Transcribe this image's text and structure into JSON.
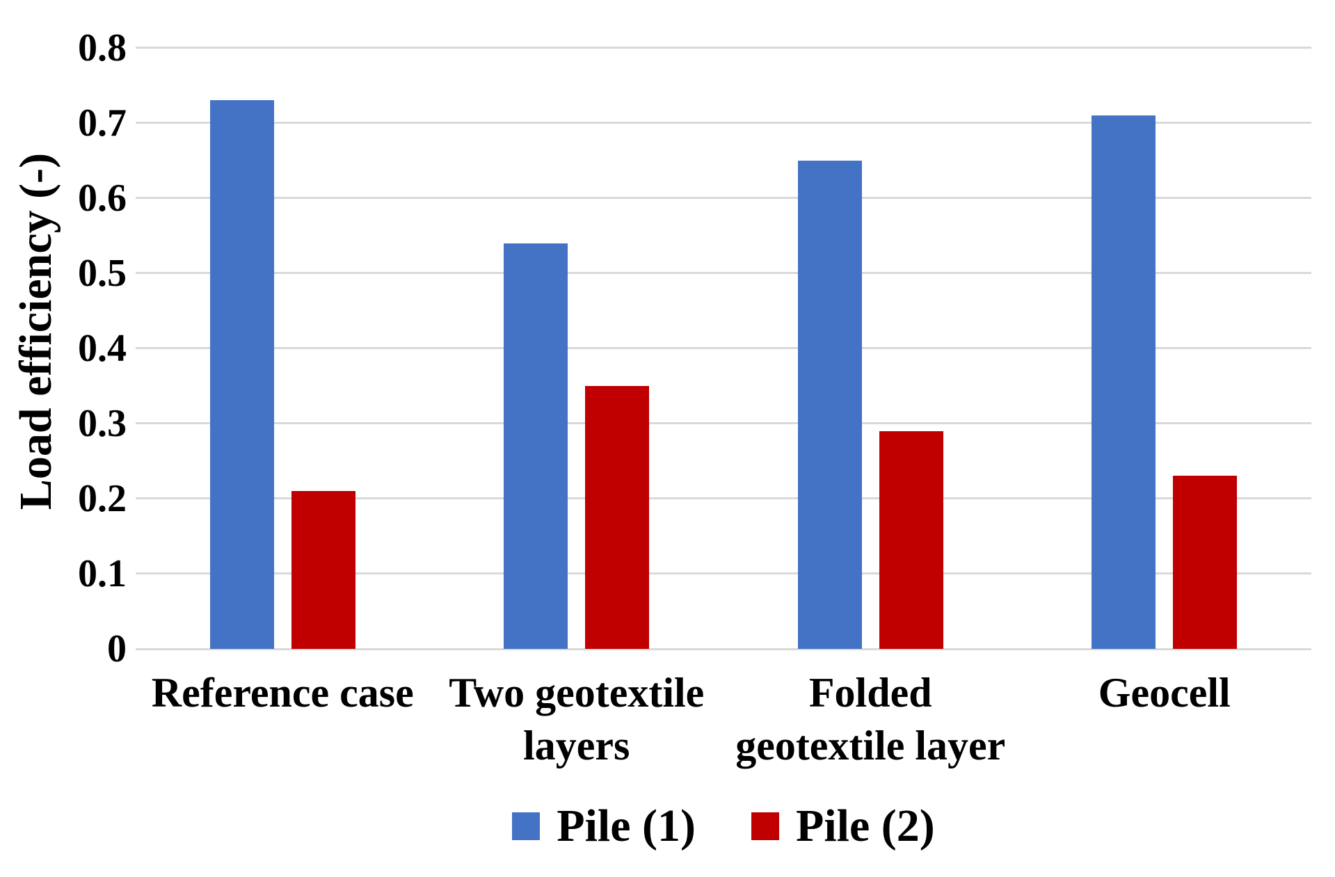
{
  "chart_data": {
    "type": "bar",
    "title": "",
    "xlabel": "",
    "ylabel": "Load efficiency (-)",
    "ylim": [
      0,
      0.8
    ],
    "ytick_step": 0.1,
    "ytick_labels": [
      "0",
      "0.1",
      "0.2",
      "0.3",
      "0.4",
      "0.5",
      "0.6",
      "0.7",
      "0.8"
    ],
    "grid": "horizontal",
    "gridline_color": "#d9d9d9",
    "legend_position": "bottom",
    "categories": [
      "Reference case",
      "Two geotextile layers",
      "Folded geotextile layer",
      "Geocell"
    ],
    "category_lines": [
      [
        "Reference case"
      ],
      [
        "Two geotextile",
        "layers"
      ],
      [
        "Folded",
        "geotextile layer"
      ],
      [
        "Geocell"
      ]
    ],
    "series": [
      {
        "name": "Pile (1)",
        "color": "#4472C4",
        "values": [
          0.73,
          0.54,
          0.65,
          0.71
        ]
      },
      {
        "name": "Pile (2)",
        "color": "#C00000",
        "values": [
          0.21,
          0.35,
          0.29,
          0.23
        ]
      }
    ]
  }
}
